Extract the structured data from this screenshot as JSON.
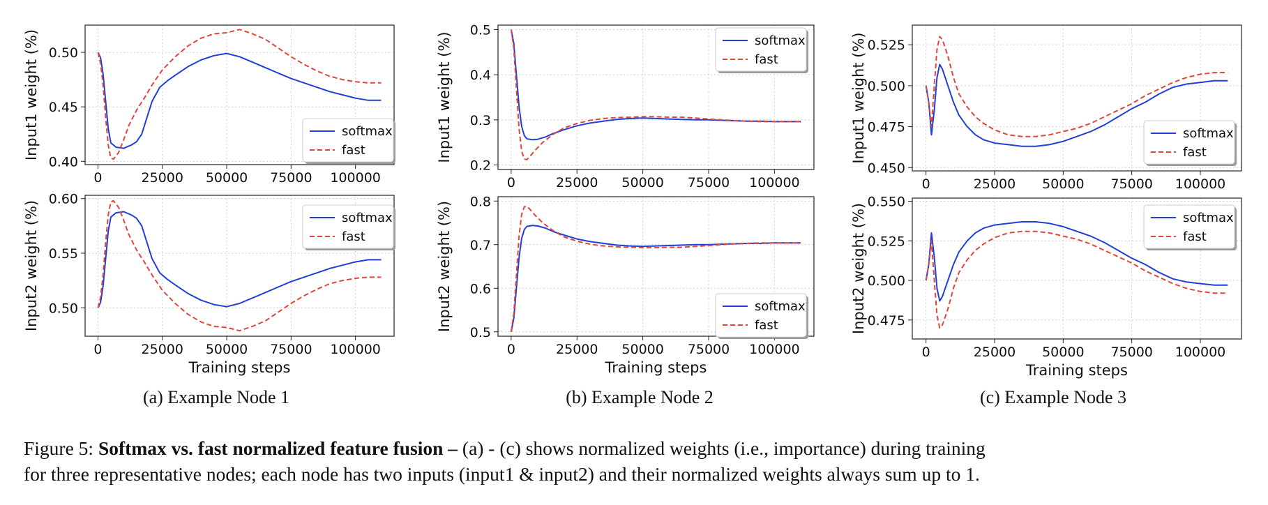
{
  "figure": {
    "caption": {
      "prefix": "Figure 5: ",
      "bold": "Softmax vs. fast normalized feature fusion –",
      "line1_rest": " (a) - (c) shows normalized weights (i.e., importance) during training",
      "line2": "for three representative nodes; each node has two inputs (input1 & input2) and their normalized weights always sum up to 1."
    },
    "x_ticks": [
      "0",
      "25000",
      "50000",
      "75000",
      "100000"
    ],
    "xlabel": "Training steps",
    "series_colors": {
      "softmax": "#1f3fd8",
      "fast": "#e0453a"
    }
  },
  "chart_data": [
    {
      "type": "line",
      "id": "node1-input1",
      "panel": "(a) Example Node 1",
      "ylabel": "Input1 weight (%)",
      "xlim": [
        -5000,
        115000
      ],
      "ylim": [
        0.397,
        0.525
      ],
      "yticks": [
        "0.40",
        "0.45",
        "0.50"
      ],
      "grid": true,
      "legend": "bottom-right",
      "series": [
        {
          "name": "softmax",
          "style": "solid",
          "x": [
            0,
            1000,
            2000,
            3000,
            4000,
            5000,
            7000,
            10000,
            13000,
            15000,
            17000,
            19000,
            21000,
            24000,
            27000,
            30000,
            35000,
            40000,
            45000,
            50000,
            55000,
            60000,
            65000,
            70000,
            75000,
            80000,
            85000,
            90000,
            95000,
            100000,
            105000,
            110000
          ],
          "y": [
            0.5,
            0.495,
            0.48,
            0.455,
            0.43,
            0.417,
            0.413,
            0.412,
            0.415,
            0.418,
            0.425,
            0.44,
            0.455,
            0.468,
            0.474,
            0.479,
            0.487,
            0.493,
            0.497,
            0.499,
            0.496,
            0.491,
            0.486,
            0.481,
            0.476,
            0.472,
            0.468,
            0.464,
            0.461,
            0.458,
            0.456,
            0.456
          ]
        },
        {
          "name": "fast",
          "style": "dashed",
          "x": [
            0,
            1000,
            2000,
            3000,
            4000,
            5000,
            6000,
            8000,
            10000,
            12000,
            15000,
            18000,
            21000,
            25000,
            30000,
            35000,
            40000,
            45000,
            50000,
            55000,
            60000,
            65000,
            70000,
            75000,
            80000,
            85000,
            90000,
            95000,
            100000,
            105000,
            110000
          ],
          "y": [
            0.5,
            0.49,
            0.47,
            0.44,
            0.415,
            0.403,
            0.402,
            0.408,
            0.42,
            0.433,
            0.447,
            0.458,
            0.47,
            0.484,
            0.496,
            0.506,
            0.513,
            0.517,
            0.518,
            0.521,
            0.517,
            0.512,
            0.504,
            0.496,
            0.489,
            0.483,
            0.478,
            0.475,
            0.473,
            0.472,
            0.472
          ]
        }
      ]
    },
    {
      "type": "line",
      "id": "node1-input2",
      "panel": "(a) Example Node 1",
      "ylabel": "Input2 weight (%)",
      "xlabel": "Training steps",
      "xlim": [
        -5000,
        115000
      ],
      "ylim": [
        0.474,
        0.603
      ],
      "yticks": [
        "0.50",
        "0.55",
        "0.60"
      ],
      "grid": true,
      "legend": "top-right",
      "series": [
        {
          "name": "softmax",
          "style": "solid",
          "x": [
            0,
            1000,
            2000,
            3000,
            4000,
            5000,
            7000,
            10000,
            13000,
            15000,
            17000,
            19000,
            21000,
            24000,
            27000,
            30000,
            35000,
            40000,
            45000,
            50000,
            55000,
            60000,
            65000,
            70000,
            75000,
            80000,
            85000,
            90000,
            95000,
            100000,
            105000,
            110000
          ],
          "y": [
            0.5,
            0.505,
            0.52,
            0.545,
            0.57,
            0.583,
            0.587,
            0.588,
            0.585,
            0.582,
            0.575,
            0.56,
            0.545,
            0.532,
            0.526,
            0.521,
            0.513,
            0.507,
            0.503,
            0.501,
            0.504,
            0.509,
            0.514,
            0.519,
            0.524,
            0.528,
            0.532,
            0.536,
            0.539,
            0.542,
            0.544,
            0.544
          ]
        },
        {
          "name": "fast",
          "style": "dashed",
          "x": [
            0,
            1000,
            2000,
            3000,
            4000,
            5000,
            6000,
            8000,
            10000,
            12000,
            15000,
            18000,
            21000,
            25000,
            30000,
            35000,
            40000,
            45000,
            50000,
            55000,
            60000,
            65000,
            70000,
            75000,
            80000,
            85000,
            90000,
            95000,
            100000,
            105000,
            110000
          ],
          "y": [
            0.5,
            0.51,
            0.53,
            0.56,
            0.585,
            0.597,
            0.598,
            0.592,
            0.58,
            0.567,
            0.553,
            0.542,
            0.53,
            0.516,
            0.504,
            0.494,
            0.487,
            0.483,
            0.482,
            0.479,
            0.483,
            0.488,
            0.496,
            0.504,
            0.511,
            0.517,
            0.522,
            0.525,
            0.527,
            0.528,
            0.528
          ]
        }
      ]
    },
    {
      "type": "line",
      "id": "node2-input1",
      "panel": "(b) Example Node 2",
      "ylabel": "Input1 weight (%)",
      "xlim": [
        -5000,
        115000
      ],
      "ylim": [
        0.19,
        0.51
      ],
      "yticks": [
        "0.2",
        "0.3",
        "0.4",
        "0.5"
      ],
      "grid": true,
      "legend": "top-right",
      "series": [
        {
          "name": "softmax",
          "style": "solid",
          "x": [
            0,
            1000,
            2000,
            3000,
            4000,
            5000,
            6000,
            8000,
            10000,
            13000,
            16000,
            20000,
            25000,
            30000,
            35000,
            40000,
            45000,
            50000,
            55000,
            60000,
            65000,
            70000,
            75000,
            80000,
            85000,
            90000,
            95000,
            100000,
            105000,
            110000
          ],
          "y": [
            0.5,
            0.47,
            0.4,
            0.33,
            0.285,
            0.265,
            0.258,
            0.256,
            0.257,
            0.262,
            0.27,
            0.278,
            0.287,
            0.293,
            0.297,
            0.301,
            0.303,
            0.304,
            0.303,
            0.302,
            0.301,
            0.3,
            0.3,
            0.299,
            0.298,
            0.297,
            0.297,
            0.296,
            0.296,
            0.296
          ]
        },
        {
          "name": "fast",
          "style": "dashed",
          "x": [
            0,
            1000,
            2000,
            3000,
            4000,
            5000,
            6000,
            7000,
            9000,
            12000,
            16000,
            20000,
            25000,
            30000,
            35000,
            40000,
            45000,
            50000,
            55000,
            60000,
            65000,
            70000,
            75000,
            80000,
            85000,
            90000,
            95000,
            100000,
            105000,
            110000
          ],
          "y": [
            0.5,
            0.46,
            0.37,
            0.28,
            0.23,
            0.213,
            0.212,
            0.218,
            0.232,
            0.25,
            0.268,
            0.282,
            0.292,
            0.299,
            0.303,
            0.305,
            0.306,
            0.307,
            0.307,
            0.306,
            0.306,
            0.304,
            0.302,
            0.3,
            0.298,
            0.297,
            0.296,
            0.296,
            0.296,
            0.296
          ]
        }
      ]
    },
    {
      "type": "line",
      "id": "node2-input2",
      "panel": "(b) Example Node 2",
      "ylabel": "Input2 weight (%)",
      "xlabel": "Training steps",
      "xlim": [
        -5000,
        115000
      ],
      "ylim": [
        0.49,
        0.81
      ],
      "yticks": [
        "0.5",
        "0.6",
        "0.7",
        "0.8"
      ],
      "grid": true,
      "legend": "bottom-right",
      "series": [
        {
          "name": "softmax",
          "style": "solid",
          "x": [
            0,
            1000,
            2000,
            3000,
            4000,
            5000,
            6000,
            8000,
            10000,
            13000,
            16000,
            20000,
            25000,
            30000,
            35000,
            40000,
            45000,
            50000,
            55000,
            60000,
            65000,
            70000,
            75000,
            80000,
            85000,
            90000,
            95000,
            100000,
            105000,
            110000
          ],
          "y": [
            0.5,
            0.53,
            0.6,
            0.67,
            0.715,
            0.735,
            0.742,
            0.744,
            0.743,
            0.738,
            0.73,
            0.722,
            0.713,
            0.707,
            0.703,
            0.699,
            0.697,
            0.696,
            0.697,
            0.698,
            0.699,
            0.7,
            0.7,
            0.701,
            0.702,
            0.703,
            0.703,
            0.704,
            0.704,
            0.704
          ]
        },
        {
          "name": "fast",
          "style": "dashed",
          "x": [
            0,
            1000,
            2000,
            3000,
            4000,
            5000,
            6000,
            7000,
            9000,
            12000,
            16000,
            20000,
            25000,
            30000,
            35000,
            40000,
            45000,
            50000,
            55000,
            60000,
            65000,
            70000,
            75000,
            80000,
            85000,
            90000,
            95000,
            100000,
            105000,
            110000
          ],
          "y": [
            0.5,
            0.54,
            0.63,
            0.72,
            0.77,
            0.787,
            0.788,
            0.782,
            0.768,
            0.75,
            0.732,
            0.718,
            0.708,
            0.701,
            0.697,
            0.695,
            0.694,
            0.693,
            0.693,
            0.694,
            0.694,
            0.696,
            0.698,
            0.7,
            0.702,
            0.703,
            0.704,
            0.704,
            0.704,
            0.704
          ]
        }
      ]
    },
    {
      "type": "line",
      "id": "node3-input1",
      "panel": "(c) Example Node 3",
      "ylabel": "Input1 weight (%)",
      "xlim": [
        -5000,
        115000
      ],
      "ylim": [
        0.448,
        0.537
      ],
      "yticks": [
        "0.450",
        "0.475",
        "0.500",
        "0.525"
      ],
      "grid": true,
      "legend": "bottom-right",
      "series": [
        {
          "name": "softmax",
          "style": "solid",
          "x": [
            0,
            1000,
            2000,
            3000,
            4000,
            5000,
            6000,
            8000,
            10000,
            12000,
            15000,
            18000,
            21000,
            25000,
            30000,
            35000,
            40000,
            45000,
            50000,
            55000,
            60000,
            65000,
            70000,
            75000,
            80000,
            85000,
            90000,
            95000,
            100000,
            105000,
            110000
          ],
          "y": [
            0.5,
            0.49,
            0.47,
            0.485,
            0.505,
            0.513,
            0.51,
            0.5,
            0.49,
            0.482,
            0.475,
            0.47,
            0.467,
            0.465,
            0.464,
            0.463,
            0.463,
            0.464,
            0.466,
            0.469,
            0.472,
            0.476,
            0.481,
            0.486,
            0.49,
            0.495,
            0.499,
            0.501,
            0.502,
            0.503,
            0.503
          ]
        },
        {
          "name": "fast",
          "style": "dashed",
          "x": [
            0,
            1000,
            2000,
            3000,
            4000,
            5000,
            6000,
            8000,
            10000,
            12000,
            15000,
            18000,
            21000,
            25000,
            30000,
            35000,
            40000,
            45000,
            50000,
            55000,
            60000,
            65000,
            70000,
            75000,
            80000,
            85000,
            90000,
            95000,
            100000,
            105000,
            110000
          ],
          "y": [
            0.5,
            0.49,
            0.475,
            0.5,
            0.522,
            0.53,
            0.528,
            0.518,
            0.505,
            0.495,
            0.487,
            0.481,
            0.477,
            0.473,
            0.47,
            0.469,
            0.469,
            0.47,
            0.472,
            0.474,
            0.477,
            0.481,
            0.485,
            0.489,
            0.494,
            0.498,
            0.502,
            0.505,
            0.507,
            0.508,
            0.508
          ]
        }
      ]
    },
    {
      "type": "line",
      "id": "node3-input2",
      "panel": "(c) Example Node 3",
      "ylabel": "Input2 weight (%)",
      "xlabel": "Training steps",
      "xlim": [
        -5000,
        115000
      ],
      "ylim": [
        0.463,
        0.552
      ],
      "yticks": [
        "0.475",
        "0.500",
        "0.525",
        "0.550"
      ],
      "grid": true,
      "legend": "top-right",
      "series": [
        {
          "name": "softmax",
          "style": "solid",
          "x": [
            0,
            1000,
            2000,
            3000,
            4000,
            5000,
            6000,
            8000,
            10000,
            12000,
            15000,
            18000,
            21000,
            25000,
            30000,
            35000,
            40000,
            45000,
            50000,
            55000,
            60000,
            65000,
            70000,
            75000,
            80000,
            85000,
            90000,
            95000,
            100000,
            105000,
            110000
          ],
          "y": [
            0.5,
            0.51,
            0.53,
            0.515,
            0.495,
            0.487,
            0.49,
            0.5,
            0.51,
            0.518,
            0.525,
            0.53,
            0.533,
            0.535,
            0.536,
            0.537,
            0.537,
            0.536,
            0.534,
            0.531,
            0.528,
            0.524,
            0.519,
            0.514,
            0.51,
            0.505,
            0.501,
            0.499,
            0.498,
            0.497,
            0.497
          ]
        },
        {
          "name": "fast",
          "style": "dashed",
          "x": [
            0,
            1000,
            2000,
            3000,
            4000,
            5000,
            6000,
            8000,
            10000,
            12000,
            15000,
            18000,
            21000,
            25000,
            30000,
            35000,
            40000,
            45000,
            50000,
            55000,
            60000,
            65000,
            70000,
            75000,
            80000,
            85000,
            90000,
            95000,
            100000,
            105000,
            110000
          ],
          "y": [
            0.5,
            0.51,
            0.525,
            0.5,
            0.478,
            0.47,
            0.472,
            0.482,
            0.495,
            0.505,
            0.513,
            0.519,
            0.523,
            0.527,
            0.53,
            0.531,
            0.531,
            0.53,
            0.528,
            0.526,
            0.523,
            0.519,
            0.515,
            0.511,
            0.506,
            0.502,
            0.498,
            0.495,
            0.493,
            0.492,
            0.492
          ]
        }
      ]
    }
  ]
}
